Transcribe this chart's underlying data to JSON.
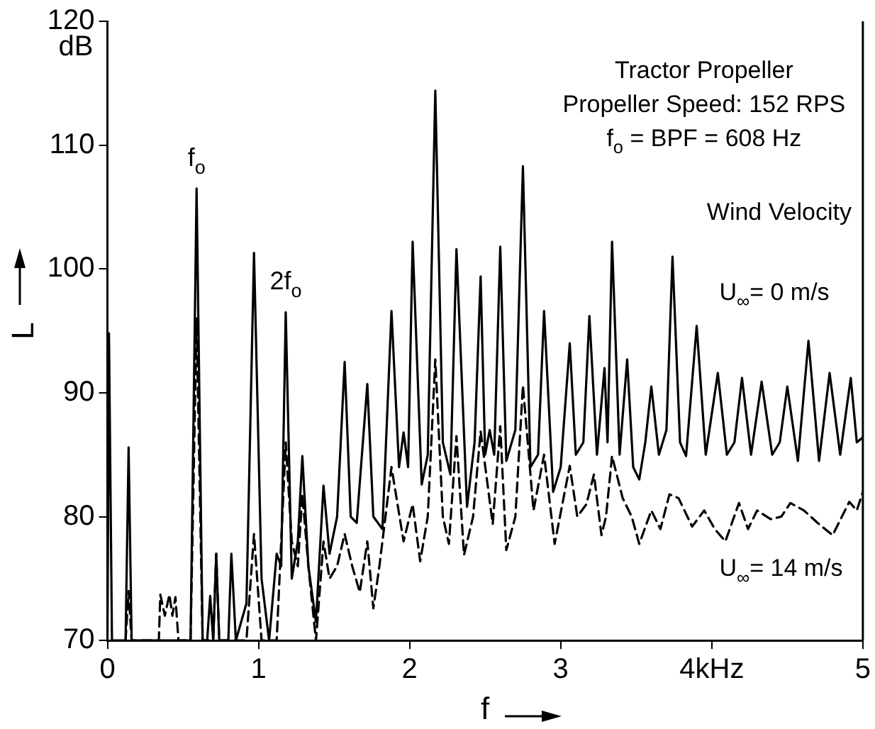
{
  "chart_data": {
    "type": "line",
    "xlabel": "f",
    "ylabel": "L",
    "xlim": [
      0,
      5
    ],
    "ylim": [
      70,
      120
    ],
    "xticks": [
      0,
      1,
      2,
      3,
      {
        "value": 4,
        "label": "4kHz"
      },
      5
    ],
    "yticks": [
      70,
      80,
      90,
      100,
      110,
      120
    ],
    "grid": false,
    "legend": false,
    "marker": "none",
    "annotations": [
      "dB",
      "Tractor Propeller",
      "Propeller Speed: 152 RPS",
      "f$_{o}$ = BPF = 608 Hz",
      "Wind Velocity",
      {
        "text": "f$_{o}$",
        "x": 0.59,
        "y": 106.5
      },
      {
        "text": "2f$_{o}$",
        "x": 1.18,
        "y": 96.5
      }
    ],
    "series": [
      {
        "name": "U$_{∞}$= 0 m/s",
        "color": "#000000",
        "line_style": "solid",
        "x": [
          0,
          0.01,
          0.03,
          0.12,
          0.14,
          0.16,
          0.55,
          0.59,
          0.63,
          0.66,
          0.68,
          0.7,
          0.72,
          0.74,
          0.8,
          0.82,
          0.85,
          0.92,
          0.97,
          1.02,
          1.07,
          1.12,
          1.15,
          1.18,
          1.22,
          1.26,
          1.29,
          1.33,
          1.38,
          1.43,
          1.47,
          1.52,
          1.57,
          1.61,
          1.65,
          1.72,
          1.76,
          1.82,
          1.88,
          1.93,
          1.96,
          1.99,
          2.02,
          2.08,
          2.12,
          2.17,
          2.22,
          2.27,
          2.31,
          2.38,
          2.43,
          2.47,
          2.5,
          2.53,
          2.56,
          2.6,
          2.64,
          2.7,
          2.75,
          2.8,
          2.85,
          2.89,
          2.95,
          3,
          3.06,
          3.1,
          3.15,
          3.19,
          3.24,
          3.29,
          3.31,
          3.34,
          3.39,
          3.44,
          3.48,
          3.52,
          3.56,
          3.6,
          3.65,
          3.7,
          3.74,
          3.79,
          3.83,
          3.9,
          3.96,
          4.04,
          4.1,
          4.15,
          4.2,
          4.26,
          4.33,
          4.4,
          4.45,
          4.5,
          4.57,
          4.64,
          4.71,
          4.78,
          4.85,
          4.92,
          4.96,
          5
        ],
        "values": [
          70,
          94.8,
          70,
          70,
          85.6,
          70,
          70,
          106.5,
          70,
          70,
          73.6,
          70,
          77,
          70,
          70,
          77,
          70,
          73,
          101.3,
          75,
          70,
          77,
          76,
          96.5,
          75,
          78,
          84.9,
          76,
          71.5,
          82.5,
          77,
          80,
          92.5,
          80,
          79.5,
          90.7,
          80,
          79,
          96.6,
          84,
          86.8,
          84,
          102.2,
          82.6,
          85,
          114.4,
          86,
          83.4,
          101.6,
          80.8,
          86,
          99.4,
          85,
          87,
          85,
          101.8,
          84.5,
          87,
          108.3,
          84,
          85,
          96.6,
          82,
          84,
          94,
          85,
          86,
          96.2,
          85,
          92,
          86,
          102.2,
          85,
          92.7,
          84,
          83,
          86,
          90.5,
          85,
          87,
          101,
          86,
          84.9,
          95.4,
          85,
          91.6,
          85,
          86,
          91.2,
          85,
          90.9,
          85,
          86,
          90.5,
          84.5,
          94.2,
          84.5,
          91.6,
          85,
          91.2,
          86,
          86.4
        ]
      },
      {
        "name": "U$_{∞}$= 14 m/s",
        "color": "#000000",
        "line_style": "dashed",
        "x": [
          0.12,
          0.14,
          0.16,
          0.34,
          0.35,
          0.38,
          0.41,
          0.43,
          0.45,
          0.47,
          0.55,
          0.59,
          0.63,
          0.7,
          0.72,
          0.74,
          0.92,
          0.97,
          1.02,
          1.12,
          1.15,
          1.18,
          1.22,
          1.26,
          1.29,
          1.33,
          1.38,
          1.43,
          1.47,
          1.52,
          1.57,
          1.62,
          1.67,
          1.72,
          1.76,
          1.8,
          1.88,
          1.96,
          2.02,
          2.07,
          2.12,
          2.17,
          2.22,
          2.26,
          2.31,
          2.36,
          2.42,
          2.47,
          2.55,
          2.6,
          2.64,
          2.7,
          2.75,
          2.82,
          2.89,
          2.96,
          3.06,
          3.11,
          3.17,
          3.22,
          3.27,
          3.3,
          3.34,
          3.41,
          3.47,
          3.52,
          3.6,
          3.66,
          3.72,
          3.78,
          3.87,
          3.95,
          4.02,
          4.09,
          4.18,
          4.24,
          4.3,
          4.39,
          4.46,
          4.52,
          4.61,
          4.7,
          4.8,
          4.91,
          4.96,
          5
        ],
        "values": [
          70,
          74,
          70,
          70,
          73.7,
          72,
          73.7,
          72,
          73.5,
          70,
          70,
          96,
          70,
          70,
          77,
          70,
          70,
          78.6,
          70,
          70,
          78,
          86,
          78,
          76,
          81.8,
          76,
          70,
          78,
          75,
          76,
          78.6,
          76,
          73.9,
          78,
          72.6,
          76,
          84,
          78,
          81,
          76.4,
          80,
          92.7,
          80,
          77.8,
          86.5,
          76.9,
          80,
          86.9,
          79.4,
          87.3,
          77.3,
          80,
          90.6,
          80.5,
          85,
          77.8,
          84.1,
          80,
          81,
          83.4,
          78.5,
          80,
          84.9,
          81.5,
          80,
          77.8,
          80.5,
          79,
          81.8,
          81.5,
          79.2,
          80.5,
          79,
          78,
          81.1,
          79,
          80.5,
          79.8,
          80,
          81.1,
          80.5,
          79.5,
          78.5,
          81.2,
          80.5,
          82
        ]
      }
    ]
  }
}
